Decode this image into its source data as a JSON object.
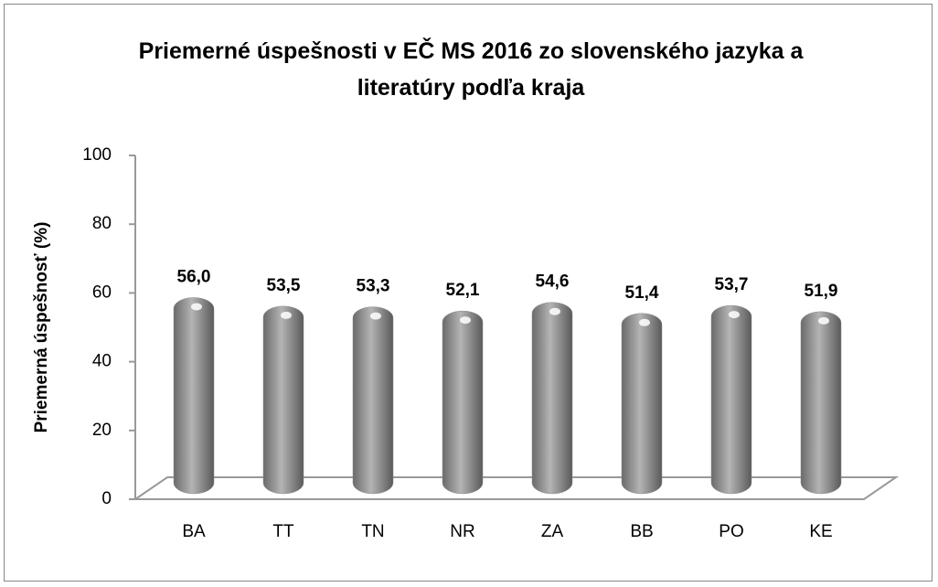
{
  "chart_data": {
    "type": "bar",
    "title": "Priemerné úspešnosti v EČ MS 2016 zo slovenského jazyka a literatúry podľa kraja",
    "y_label": "Priemerná úspešnosť (%)",
    "categories": [
      "BA",
      "TT",
      "TN",
      "NR",
      "ZA",
      "BB",
      "PO",
      "KE"
    ],
    "values": [
      56.0,
      53.5,
      53.3,
      52.1,
      54.6,
      51.4,
      53.7,
      51.9
    ],
    "value_labels": [
      "56,0",
      "53,5",
      "53,3",
      "52,1",
      "54,6",
      "51,4",
      "53,7",
      "51,9"
    ],
    "color": "#8c8c8c",
    "ylim": [
      0,
      100
    ],
    "yticks": [
      0,
      20,
      40,
      60,
      80,
      100
    ],
    "grid": false
  }
}
